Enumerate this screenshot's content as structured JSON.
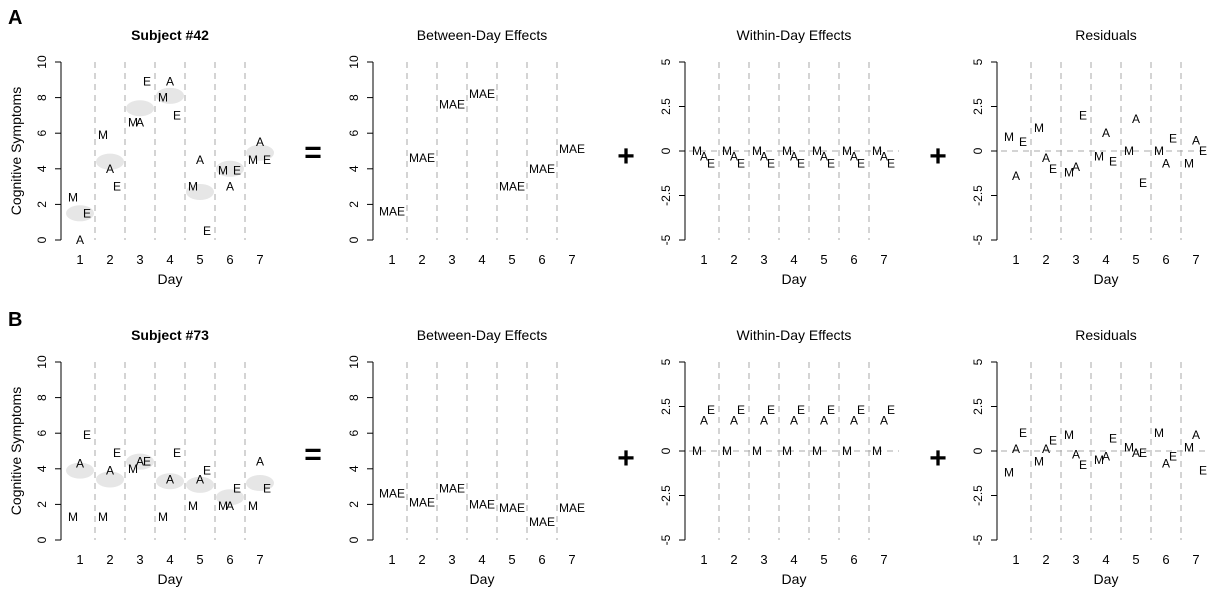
{
  "figure": {
    "row_labels": [
      "A",
      "B"
    ],
    "operators": [
      "=",
      "+",
      "+"
    ]
  },
  "chart_data": [
    {
      "type": "scatter",
      "row": 0,
      "col": 0,
      "title": "Subject #42",
      "title_bold": true,
      "xlabel": "Day",
      "ylabel": "Cognitive Symptoms",
      "ylim": [
        0,
        10
      ],
      "yticks": [
        0,
        2,
        4,
        6,
        8,
        10
      ],
      "ytick_labels": [
        "0",
        "2",
        "4",
        "6",
        "8",
        "10"
      ],
      "xticks": [
        "1",
        "2",
        "3",
        "4",
        "5",
        "6",
        "7"
      ],
      "day_separators": true,
      "zero_line": false,
      "day_mean_blobs": true,
      "day_means": [
        1.5,
        4.4,
        7.4,
        8.1,
        2.7,
        4.0,
        4.9
      ],
      "points": [
        {
          "day": 1,
          "label": "M",
          "y": 2.4
        },
        {
          "day": 1,
          "label": "A",
          "y": 0.0
        },
        {
          "day": 1,
          "label": "E",
          "y": 1.5
        },
        {
          "day": 2,
          "label": "M",
          "y": 5.9
        },
        {
          "day": 2,
          "label": "A",
          "y": 4.0
        },
        {
          "day": 2,
          "label": "E",
          "y": 3.0
        },
        {
          "day": 3,
          "label": "M",
          "y": 6.6
        },
        {
          "day": 3,
          "label": "A",
          "y": 6.6
        },
        {
          "day": 3,
          "label": "E",
          "y": 8.9
        },
        {
          "day": 4,
          "label": "M",
          "y": 8.0
        },
        {
          "day": 4,
          "label": "A",
          "y": 8.9
        },
        {
          "day": 4,
          "label": "E",
          "y": 7.0
        },
        {
          "day": 5,
          "label": "M",
          "y": 3.0
        },
        {
          "day": 5,
          "label": "A",
          "y": 4.5
        },
        {
          "day": 5,
          "label": "E",
          "y": 0.5
        },
        {
          "day": 6,
          "label": "M",
          "y": 3.9
        },
        {
          "day": 6,
          "label": "A",
          "y": 3.0
        },
        {
          "day": 6,
          "label": "E",
          "y": 3.9
        },
        {
          "day": 7,
          "label": "M",
          "y": 4.5
        },
        {
          "day": 7,
          "label": "A",
          "y": 5.5
        },
        {
          "day": 7,
          "label": "E",
          "y": 4.5
        }
      ]
    },
    {
      "type": "scatter",
      "row": 0,
      "col": 1,
      "title": "Between-Day Effects",
      "title_bold": false,
      "xlabel": "",
      "ylabel": "",
      "ylim": [
        0,
        10
      ],
      "yticks": [
        0,
        2,
        4,
        6,
        8,
        10
      ],
      "ytick_labels": [
        "0",
        "2",
        "4",
        "6",
        "8",
        "10"
      ],
      "xticks": [
        "1",
        "2",
        "3",
        "4",
        "5",
        "6",
        "7"
      ],
      "day_separators": true,
      "zero_line": false,
      "day_mean_blobs": false,
      "points": [
        {
          "day": 1,
          "label": "MAE",
          "y": 1.6
        },
        {
          "day": 2,
          "label": "MAE",
          "y": 4.6
        },
        {
          "day": 3,
          "label": "MAE",
          "y": 7.6
        },
        {
          "day": 4,
          "label": "MAE",
          "y": 8.2
        },
        {
          "day": 5,
          "label": "MAE",
          "y": 3.0
        },
        {
          "day": 6,
          "label": "MAE",
          "y": 4.0
        },
        {
          "day": 7,
          "label": "MAE",
          "y": 5.1
        }
      ]
    },
    {
      "type": "scatter",
      "row": 0,
      "col": 2,
      "title": "Within-Day Effects",
      "title_bold": false,
      "xlabel": "Day",
      "ylabel": "",
      "ylim": [
        -5,
        5
      ],
      "yticks": [
        -5,
        -2.5,
        0,
        2.5,
        5
      ],
      "ytick_labels": [
        "-5",
        "-2.5",
        "0",
        "2.5",
        "5"
      ],
      "xticks": [
        "1",
        "2",
        "3",
        "4",
        "5",
        "6",
        "7"
      ],
      "day_separators": true,
      "zero_line": true,
      "day_mean_blobs": false,
      "points": [
        {
          "day": 1,
          "label": "M",
          "y": 0.0
        },
        {
          "day": 1,
          "label": "A",
          "y": -0.3
        },
        {
          "day": 1,
          "label": "E",
          "y": -0.7
        },
        {
          "day": 2,
          "label": "M",
          "y": 0.0
        },
        {
          "day": 2,
          "label": "A",
          "y": -0.3
        },
        {
          "day": 2,
          "label": "E",
          "y": -0.7
        },
        {
          "day": 3,
          "label": "M",
          "y": 0.0
        },
        {
          "day": 3,
          "label": "A",
          "y": -0.3
        },
        {
          "day": 3,
          "label": "E",
          "y": -0.7
        },
        {
          "day": 4,
          "label": "M",
          "y": 0.0
        },
        {
          "day": 4,
          "label": "A",
          "y": -0.3
        },
        {
          "day": 4,
          "label": "E",
          "y": -0.7
        },
        {
          "day": 5,
          "label": "M",
          "y": 0.0
        },
        {
          "day": 5,
          "label": "A",
          "y": -0.3
        },
        {
          "day": 5,
          "label": "E",
          "y": -0.7
        },
        {
          "day": 6,
          "label": "M",
          "y": 0.0
        },
        {
          "day": 6,
          "label": "A",
          "y": -0.3
        },
        {
          "day": 6,
          "label": "E",
          "y": -0.7
        },
        {
          "day": 7,
          "label": "M",
          "y": 0.0
        },
        {
          "day": 7,
          "label": "A",
          "y": -0.3
        },
        {
          "day": 7,
          "label": "E",
          "y": -0.7
        }
      ]
    },
    {
      "type": "scatter",
      "row": 0,
      "col": 3,
      "title": "Residuals",
      "title_bold": false,
      "xlabel": "Day",
      "ylabel": "",
      "ylim": [
        -5,
        5
      ],
      "yticks": [
        -5,
        -2.5,
        0,
        2.5,
        5
      ],
      "ytick_labels": [
        "-5",
        "-2.5",
        "0",
        "2.5",
        "5"
      ],
      "xticks": [
        "1",
        "2",
        "3",
        "4",
        "5",
        "6",
        "7"
      ],
      "day_separators": true,
      "zero_line": true,
      "day_mean_blobs": false,
      "points": [
        {
          "day": 1,
          "label": "M",
          "y": 0.8
        },
        {
          "day": 1,
          "label": "A",
          "y": -1.4
        },
        {
          "day": 1,
          "label": "E",
          "y": 0.5
        },
        {
          "day": 2,
          "label": "M",
          "y": 1.3
        },
        {
          "day": 2,
          "label": "A",
          "y": -0.4
        },
        {
          "day": 2,
          "label": "E",
          "y": -1.0
        },
        {
          "day": 3,
          "label": "M",
          "y": -1.2
        },
        {
          "day": 3,
          "label": "A",
          "y": -0.9
        },
        {
          "day": 3,
          "label": "E",
          "y": 2.0
        },
        {
          "day": 4,
          "label": "M",
          "y": -0.3
        },
        {
          "day": 4,
          "label": "A",
          "y": 1.0
        },
        {
          "day": 4,
          "label": "E",
          "y": -0.6
        },
        {
          "day": 5,
          "label": "M",
          "y": 0.0
        },
        {
          "day": 5,
          "label": "A",
          "y": 1.8
        },
        {
          "day": 5,
          "label": "E",
          "y": -1.8
        },
        {
          "day": 6,
          "label": "M",
          "y": 0.0
        },
        {
          "day": 6,
          "label": "A",
          "y": -0.7
        },
        {
          "day": 6,
          "label": "E",
          "y": 0.7
        },
        {
          "day": 7,
          "label": "M",
          "y": -0.7
        },
        {
          "day": 7,
          "label": "A",
          "y": 0.6
        },
        {
          "day": 7,
          "label": "E",
          "y": 0.0
        }
      ]
    },
    {
      "type": "scatter",
      "row": 1,
      "col": 0,
      "title": "Subject #73",
      "title_bold": true,
      "xlabel": "Day",
      "ylabel": "Cognitive Symptoms",
      "ylim": [
        0,
        10
      ],
      "yticks": [
        0,
        2,
        4,
        6,
        8,
        10
      ],
      "ytick_labels": [
        "0",
        "2",
        "4",
        "6",
        "8",
        "10"
      ],
      "xticks": [
        "1",
        "2",
        "3",
        "4",
        "5",
        "6",
        "7"
      ],
      "day_separators": true,
      "zero_line": false,
      "day_mean_blobs": true,
      "day_means": [
        3.9,
        3.4,
        4.4,
        3.3,
        3.1,
        2.4,
        3.2
      ],
      "points": [
        {
          "day": 1,
          "label": "M",
          "y": 1.3
        },
        {
          "day": 1,
          "label": "A",
          "y": 4.3
        },
        {
          "day": 1,
          "label": "E",
          "y": 5.9
        },
        {
          "day": 2,
          "label": "M",
          "y": 1.3
        },
        {
          "day": 2,
          "label": "A",
          "y": 3.9
        },
        {
          "day": 2,
          "label": "E",
          "y": 4.9
        },
        {
          "day": 3,
          "label": "M",
          "y": 4.0
        },
        {
          "day": 3,
          "label": "A",
          "y": 4.4
        },
        {
          "day": 3,
          "label": "E",
          "y": 4.4
        },
        {
          "day": 4,
          "label": "M",
          "y": 1.3
        },
        {
          "day": 4,
          "label": "A",
          "y": 3.4
        },
        {
          "day": 4,
          "label": "E",
          "y": 4.9
        },
        {
          "day": 5,
          "label": "M",
          "y": 1.9
        },
        {
          "day": 5,
          "label": "A",
          "y": 3.4
        },
        {
          "day": 5,
          "label": "E",
          "y": 3.9
        },
        {
          "day": 6,
          "label": "M",
          "y": 1.9
        },
        {
          "day": 6,
          "label": "A",
          "y": 1.9
        },
        {
          "day": 6,
          "label": "E",
          "y": 2.9
        },
        {
          "day": 7,
          "label": "M",
          "y": 1.9
        },
        {
          "day": 7,
          "label": "A",
          "y": 4.4
        },
        {
          "day": 7,
          "label": "E",
          "y": 2.9
        }
      ]
    },
    {
      "type": "scatter",
      "row": 1,
      "col": 1,
      "title": "Between-Day Effects",
      "title_bold": false,
      "xlabel": "Day",
      "ylabel": "",
      "ylim": [
        0,
        10
      ],
      "yticks": [
        0,
        2,
        4,
        6,
        8,
        10
      ],
      "ytick_labels": [
        "0",
        "2",
        "4",
        "6",
        "8",
        "10"
      ],
      "xticks": [
        "1",
        "2",
        "3",
        "4",
        "5",
        "6",
        "7"
      ],
      "day_separators": true,
      "zero_line": false,
      "day_mean_blobs": false,
      "points": [
        {
          "day": 1,
          "label": "MAE",
          "y": 2.6
        },
        {
          "day": 2,
          "label": "MAE",
          "y": 2.1
        },
        {
          "day": 3,
          "label": "MAE",
          "y": 2.9
        },
        {
          "day": 4,
          "label": "MAE",
          "y": 2.0
        },
        {
          "day": 5,
          "label": "MAE",
          "y": 1.8
        },
        {
          "day": 6,
          "label": "MAE",
          "y": 1.0
        },
        {
          "day": 7,
          "label": "MAE",
          "y": 1.8
        }
      ]
    },
    {
      "type": "scatter",
      "row": 1,
      "col": 2,
      "title": "Within-Day Effects",
      "title_bold": false,
      "xlabel": "Day",
      "ylabel": "",
      "ylim": [
        -5,
        5
      ],
      "yticks": [
        -5,
        -2.5,
        0,
        2.5,
        5
      ],
      "ytick_labels": [
        "-5",
        "-2.5",
        "0",
        "2.5",
        "5"
      ],
      "xticks": [
        "1",
        "2",
        "3",
        "4",
        "5",
        "6",
        "7"
      ],
      "day_separators": true,
      "zero_line": true,
      "day_mean_blobs": false,
      "points": [
        {
          "day": 1,
          "label": "M",
          "y": 0.0
        },
        {
          "day": 1,
          "label": "A",
          "y": 1.7
        },
        {
          "day": 1,
          "label": "E",
          "y": 2.3
        },
        {
          "day": 2,
          "label": "M",
          "y": 0.0
        },
        {
          "day": 2,
          "label": "A",
          "y": 1.7
        },
        {
          "day": 2,
          "label": "E",
          "y": 2.3
        },
        {
          "day": 3,
          "label": "M",
          "y": 0.0
        },
        {
          "day": 3,
          "label": "A",
          "y": 1.7
        },
        {
          "day": 3,
          "label": "E",
          "y": 2.3
        },
        {
          "day": 4,
          "label": "M",
          "y": 0.0
        },
        {
          "day": 4,
          "label": "A",
          "y": 1.7
        },
        {
          "day": 4,
          "label": "E",
          "y": 2.3
        },
        {
          "day": 5,
          "label": "M",
          "y": 0.0
        },
        {
          "day": 5,
          "label": "A",
          "y": 1.7
        },
        {
          "day": 5,
          "label": "E",
          "y": 2.3
        },
        {
          "day": 6,
          "label": "M",
          "y": 0.0
        },
        {
          "day": 6,
          "label": "A",
          "y": 1.7
        },
        {
          "day": 6,
          "label": "E",
          "y": 2.3
        },
        {
          "day": 7,
          "label": "M",
          "y": 0.0
        },
        {
          "day": 7,
          "label": "A",
          "y": 1.7
        },
        {
          "day": 7,
          "label": "E",
          "y": 2.3
        }
      ]
    },
    {
      "type": "scatter",
      "row": 1,
      "col": 3,
      "title": "Residuals",
      "title_bold": false,
      "xlabel": "Day",
      "ylabel": "",
      "ylim": [
        -5,
        5
      ],
      "yticks": [
        -5,
        -2.5,
        0,
        2.5,
        5
      ],
      "ytick_labels": [
        "-5",
        "-2.5",
        "0",
        "2.5",
        "5"
      ],
      "xticks": [
        "1",
        "2",
        "3",
        "4",
        "5",
        "6",
        "7"
      ],
      "day_separators": true,
      "zero_line": true,
      "day_mean_blobs": false,
      "points": [
        {
          "day": 1,
          "label": "M",
          "y": -1.2
        },
        {
          "day": 1,
          "label": "A",
          "y": 0.1
        },
        {
          "day": 1,
          "label": "E",
          "y": 1.0
        },
        {
          "day": 2,
          "label": "M",
          "y": -0.6
        },
        {
          "day": 2,
          "label": "A",
          "y": 0.1
        },
        {
          "day": 2,
          "label": "E",
          "y": 0.6
        },
        {
          "day": 3,
          "label": "M",
          "y": 0.9
        },
        {
          "day": 3,
          "label": "A",
          "y": -0.2
        },
        {
          "day": 3,
          "label": "E",
          "y": -0.8
        },
        {
          "day": 4,
          "label": "M",
          "y": -0.5
        },
        {
          "day": 4,
          "label": "A",
          "y": -0.3
        },
        {
          "day": 4,
          "label": "E",
          "y": 0.7
        },
        {
          "day": 5,
          "label": "M",
          "y": 0.2
        },
        {
          "day": 5,
          "label": "A",
          "y": -0.1
        },
        {
          "day": 5,
          "label": "E",
          "y": -0.1
        },
        {
          "day": 6,
          "label": "M",
          "y": 1.0
        },
        {
          "day": 6,
          "label": "A",
          "y": -0.7
        },
        {
          "day": 6,
          "label": "E",
          "y": -0.3
        },
        {
          "day": 7,
          "label": "M",
          "y": 0.2
        },
        {
          "day": 7,
          "label": "A",
          "y": 0.9
        },
        {
          "day": 7,
          "label": "E",
          "y": -1.1
        }
      ]
    }
  ]
}
